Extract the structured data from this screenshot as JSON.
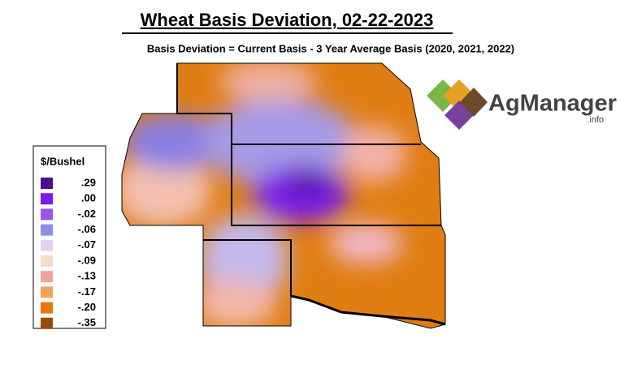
{
  "header": {
    "title": "Wheat Basis Deviation, 02-22-2023",
    "subtitle": "Basis Deviation = Current Basis - 3 Year Average Basis (2020, 2021, 2022)"
  },
  "legend": {
    "title": "$/Bushel",
    "items": [
      {
        "label": ".29",
        "color": "#4a0f8c"
      },
      {
        "label": ".00",
        "color": "#7a1ce8"
      },
      {
        "label": "-.02",
        "color": "#9b55ea"
      },
      {
        "label": "-.06",
        "color": "#8e8ee8"
      },
      {
        "label": "-.07",
        "color": "#e4d2f2"
      },
      {
        "label": "-.09",
        "color": "#f7dccb"
      },
      {
        "label": "-.13",
        "color": "#f2a298"
      },
      {
        "label": "-.17",
        "color": "#f5a35a"
      },
      {
        "label": "-.20",
        "color": "#e8780a"
      },
      {
        "label": "-.35",
        "color": "#9a4a06"
      }
    ]
  },
  "logo": {
    "name": "AgManager",
    "suffix": ".info"
  }
}
